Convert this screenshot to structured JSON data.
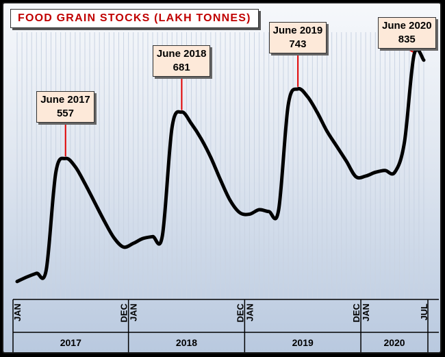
{
  "chart_data": {
    "type": "line",
    "title": "FOOD GRAIN STOCKS (LAKH TONNES)",
    "xlabel": "",
    "ylabel": "",
    "grid": true,
    "line_color": "#000000",
    "ylim": [
      180,
      880
    ],
    "x": [
      "2017-01",
      "2017-02",
      "2017-03",
      "2017-04",
      "2017-05",
      "2017-06",
      "2017-07",
      "2017-08",
      "2017-09",
      "2017-10",
      "2017-11",
      "2017-12",
      "2018-01",
      "2018-02",
      "2018-03",
      "2018-04",
      "2018-05",
      "2018-06",
      "2018-07",
      "2018-08",
      "2018-09",
      "2018-10",
      "2018-11",
      "2018-12",
      "2019-01",
      "2019-02",
      "2019-03",
      "2019-04",
      "2019-05",
      "2019-06",
      "2019-07",
      "2019-08",
      "2019-09",
      "2019-10",
      "2019-11",
      "2019-12",
      "2020-01",
      "2020-02",
      "2020-03",
      "2020-04",
      "2020-05",
      "2020-06",
      "2020-07"
    ],
    "series": [
      {
        "values": [
          228,
          240,
          250,
          258,
          520,
          557,
          535,
          490,
          440,
          390,
          345,
          320,
          330,
          343,
          348,
          350,
          640,
          681,
          650,
          610,
          560,
          500,
          445,
          412,
          408,
          420,
          415,
          418,
          700,
          743,
          722,
          680,
          630,
          590,
          550,
          508,
          510,
          520,
          525,
          520,
          600,
          835,
          820
        ]
      }
    ],
    "x_ticks": [
      {
        "x": "2017-01",
        "label": "JAN"
      },
      {
        "x": "2017-12",
        "label": "DEC"
      },
      {
        "x": "2018-01",
        "label": "JAN"
      },
      {
        "x": "2018-12",
        "label": "DEC"
      },
      {
        "x": "2019-01",
        "label": "JAN"
      },
      {
        "x": "2019-12",
        "label": "DEC"
      },
      {
        "x": "2020-01",
        "label": "JAN"
      },
      {
        "x": "2020-07",
        "label": "JUL"
      }
    ],
    "years": [
      {
        "label": "2017",
        "start": "2017-01",
        "end": "2017-12"
      },
      {
        "label": "2018",
        "start": "2018-01",
        "end": "2018-12"
      },
      {
        "label": "2019",
        "start": "2019-01",
        "end": "2019-12"
      },
      {
        "label": "2020",
        "start": "2020-01",
        "end": "2020-07"
      }
    ],
    "annotations": [
      {
        "x": "2017-06",
        "label": "June 2017",
        "value": "557",
        "leader_color": "#e00000"
      },
      {
        "x": "2018-06",
        "label": "June 2018",
        "value": "681",
        "leader_color": "#e00000"
      },
      {
        "x": "2019-06",
        "label": "June 2019",
        "value": "743",
        "leader_color": "#e00000"
      },
      {
        "x": "2020-06",
        "label": "June 2020",
        "value": "835",
        "leader_color": "#e00000"
      }
    ],
    "colors": {
      "title_text": "#c00000",
      "callout_fill": "#fde9d9",
      "gridline": "#c9d3e2"
    }
  }
}
